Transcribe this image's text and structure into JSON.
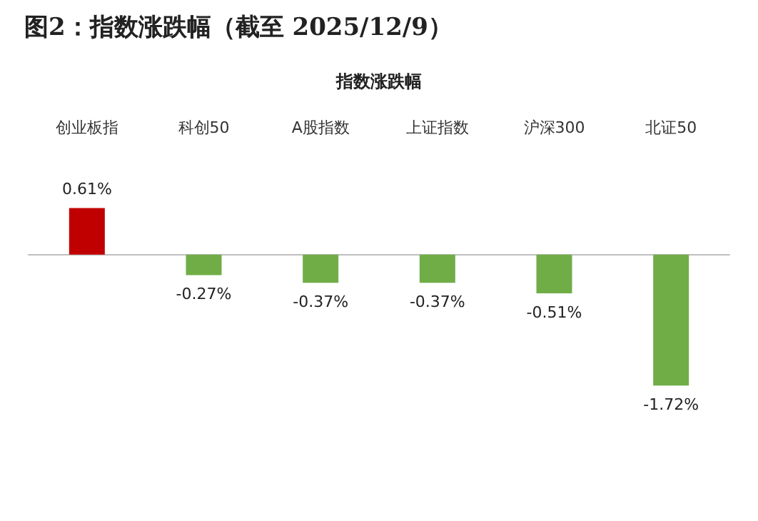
{
  "chart_data": {
    "type": "bar",
    "title": "图2：指数涨跌幅（截至 2025/12/9）",
    "subtitle": "指数涨跌幅",
    "categories": [
      "创业板指",
      "科创50",
      "A股指数",
      "上证指数",
      "沪深300",
      "北证50"
    ],
    "values": [
      0.61,
      -0.27,
      -0.37,
      -0.37,
      -0.51,
      -1.72
    ],
    "colors": [
      "#c00000",
      "#70ad47",
      "#70ad47",
      "#70ad47",
      "#70ad47",
      "#70ad47"
    ],
    "value_labels": [
      "0.61%",
      "-0.27%",
      "-0.37%",
      "-0.37%",
      "-0.51%",
      "-1.72%"
    ]
  }
}
